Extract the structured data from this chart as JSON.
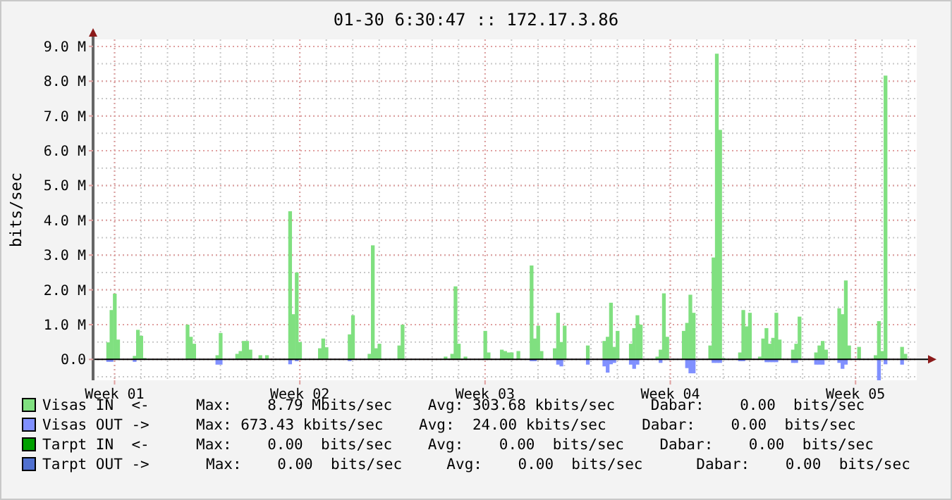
{
  "chart_data": {
    "type": "bar",
    "stacked": true,
    "title": "01-30 6:30:47 :: 172.17.3.86",
    "ylabel": "bits/sec",
    "categories": [
      null,
      null,
      null,
      null,
      null,
      null,
      "Week 01",
      null,
      null,
      null,
      null,
      null,
      null,
      null,
      null,
      null,
      null,
      null,
      null,
      null,
      null,
      null,
      null,
      null,
      null,
      null,
      null,
      null,
      null,
      null,
      null,
      null,
      null,
      null,
      null,
      null,
      null,
      null,
      null,
      null,
      null,
      null,
      null,
      null,
      null,
      null,
      null,
      null,
      null,
      null,
      null,
      null,
      null,
      null,
      null,
      null,
      null,
      null,
      null,
      null,
      null,
      null,
      "Week 02",
      null,
      null,
      null,
      null,
      null,
      null,
      null,
      null,
      null,
      null,
      null,
      null,
      null,
      null,
      null,
      null,
      null,
      null,
      null,
      null,
      null,
      null,
      null,
      null,
      null,
      null,
      null,
      null,
      null,
      null,
      null,
      null,
      null,
      null,
      null,
      null,
      null,
      null,
      null,
      null,
      null,
      null,
      null,
      null,
      null,
      null,
      null,
      null,
      null,
      null,
      null,
      null,
      null,
      null,
      null,
      "Week 03",
      null,
      null,
      null,
      null,
      null,
      null,
      null,
      null,
      null,
      null,
      null,
      null,
      null,
      null,
      null,
      null,
      null,
      null,
      null,
      null,
      null,
      null,
      null,
      null,
      null,
      null,
      null,
      null,
      null,
      null,
      null,
      null,
      null,
      null,
      null,
      null,
      null,
      null,
      null,
      null,
      null,
      null,
      null,
      null,
      null,
      null,
      null,
      null,
      null,
      null,
      null,
      null,
      null,
      null,
      null,
      "Week 04",
      null,
      null,
      null,
      null,
      null,
      null,
      null,
      null,
      null,
      null,
      null,
      null,
      null,
      null,
      null,
      null,
      null,
      null,
      null,
      null,
      null,
      null,
      null,
      null,
      null,
      null,
      null,
      null,
      null,
      null,
      null,
      null,
      null,
      null,
      null,
      null,
      null,
      null,
      null,
      null,
      null,
      null,
      null,
      null,
      null,
      null,
      null,
      null,
      null,
      null,
      null,
      null,
      null,
      null,
      null,
      "Week 05",
      null,
      null,
      null,
      null,
      null,
      null,
      null,
      null,
      null,
      null,
      null,
      null,
      null,
      null,
      null,
      null,
      null,
      null
    ],
    "ylim": [
      -0.6,
      9.2
    ],
    "yticks": [
      {
        "value": 0,
        "label": "0.0"
      },
      {
        "value": 1,
        "label": "1.0 M"
      },
      {
        "value": 2,
        "label": "2.0 M"
      },
      {
        "value": 3,
        "label": "3.0 M"
      },
      {
        "value": 4,
        "label": "4.0 M"
      },
      {
        "value": 5,
        "label": "5.0 M"
      },
      {
        "value": 6,
        "label": "6.0 M"
      },
      {
        "value": 7,
        "label": "7.0 M"
      },
      {
        "value": 8,
        "label": "8.0 M"
      },
      {
        "value": 9,
        "label": "9.0 M"
      }
    ],
    "grid": true,
    "legend": "bottom",
    "series": [
      {
        "name": "Visas IN  <-",
        "color": "#80e080",
        "values": [
          0,
          0,
          0,
          0,
          0.49,
          1.42,
          1.89,
          0.57,
          0,
          0,
          0,
          0,
          0.1,
          0.85,
          0.68,
          0.04,
          0,
          0,
          0,
          0,
          0,
          0,
          0,
          0,
          0,
          0,
          0,
          0,
          1.0,
          0.65,
          0.45,
          0,
          0,
          0,
          0,
          0,
          0,
          0.12,
          0.76,
          0,
          0,
          0,
          0,
          0.16,
          0.24,
          0.53,
          0.53,
          0.28,
          0,
          0,
          0.12,
          0,
          0.12,
          0,
          0,
          0,
          0,
          0,
          0,
          4.26,
          1.3,
          2.5,
          0.5,
          0,
          0,
          0,
          0,
          0,
          0.32,
          0.6,
          0.35,
          0,
          0,
          0,
          0,
          0,
          0,
          0.72,
          1.27,
          0,
          0,
          0,
          0,
          0.16,
          3.28,
          0.32,
          0.45,
          0,
          0,
          0,
          0,
          0,
          0.4,
          1.0,
          0,
          0,
          0,
          0,
          0,
          0,
          0,
          0,
          0,
          0,
          0,
          0,
          0.08,
          0,
          0.16,
          2.1,
          0.45,
          0,
          0.08,
          0,
          0,
          0,
          0,
          0,
          0.82,
          0.2,
          0,
          0,
          0,
          0.28,
          0.24,
          0.2,
          0.2,
          0,
          0.24,
          0,
          0,
          0,
          2.7,
          0.6,
          0.97,
          0.24,
          0,
          0,
          0,
          0.32,
          1.34,
          0.5,
          0.97,
          0,
          0,
          0,
          0,
          0,
          0,
          0.4,
          0,
          0,
          0,
          0,
          0.53,
          0.65,
          1.63,
          0.36,
          0.82,
          0,
          0,
          0,
          0.45,
          0.9,
          1.27,
          1.0,
          0,
          0,
          0,
          0,
          0.08,
          0.28,
          1.9,
          0.65,
          0,
          0,
          0,
          0,
          0.82,
          1.05,
          1.86,
          1.34,
          0,
          0,
          0,
          0,
          0.4,
          2.93,
          8.79,
          6.6,
          0.04,
          0,
          0,
          0,
          0,
          0.2,
          1.42,
          0.95,
          1.34,
          0,
          0,
          0.08,
          0.6,
          0.9,
          0.45,
          0.62,
          1.34,
          0.57,
          0,
          0,
          0,
          0.28,
          0.45,
          1.23,
          0,
          0,
          0,
          0,
          0.2,
          0.4,
          0.53,
          0.28,
          0,
          0,
          0,
          1.47,
          1.3,
          2.27,
          0.4,
          null,
          0,
          0.36,
          0,
          0,
          0,
          0,
          0.12,
          1.1,
          0.24,
          8.16,
          0,
          0,
          0,
          0,
          0.36,
          0.16,
          0,
          0,
          0
        ]
      },
      {
        "name": "Visas OUT ->",
        "color": "#8090ff",
        "values": [
          0,
          0,
          0,
          0,
          -0.07,
          -0.07,
          0,
          0,
          0,
          0,
          0,
          0,
          -0.07,
          0,
          0,
          0,
          0,
          0,
          0,
          0,
          0,
          0,
          0,
          0,
          0,
          0,
          0,
          0,
          0,
          0,
          0,
          0,
          0,
          0,
          0,
          0,
          0,
          -0.15,
          -0.15,
          0,
          0,
          0,
          0,
          0,
          0,
          0,
          0,
          0,
          0,
          0,
          0,
          0,
          0,
          0,
          0,
          0,
          0,
          0,
          0,
          -0.14,
          0,
          -0.05,
          0,
          0,
          0,
          0,
          0,
          0,
          0,
          0,
          0,
          0,
          0,
          0,
          0,
          0,
          0,
          -0.05,
          0,
          0,
          0,
          0,
          0,
          0,
          null,
          0,
          0,
          0,
          0,
          0,
          0,
          0,
          0,
          0,
          0,
          0,
          0,
          0,
          0,
          0,
          0,
          0,
          0,
          0,
          0,
          0,
          0,
          0,
          0,
          0,
          0,
          0,
          0,
          0,
          0,
          0,
          0,
          0,
          0,
          0,
          0,
          0,
          0,
          0,
          0,
          0,
          0,
          0,
          0,
          0,
          0,
          0,
          -0.05,
          -0.05,
          0,
          0,
          0,
          0,
          0,
          0,
          -0.15,
          -0.2,
          0,
          0,
          0,
          0,
          0,
          0,
          0,
          -0.15,
          0,
          0,
          0,
          0,
          -0.2,
          -0.38,
          -0.14,
          -0.1,
          0,
          0,
          0,
          0,
          -0.15,
          -0.27,
          -0.15,
          0,
          0,
          0,
          0,
          0,
          0,
          -0.1,
          0,
          0,
          0,
          0,
          0,
          0,
          0,
          -0.25,
          -0.4,
          -0.4,
          0,
          0,
          0,
          0,
          0,
          -0.1,
          -0.1,
          -0.1,
          0,
          0,
          0,
          0,
          0,
          -0.05,
          -0.05,
          0,
          0,
          0,
          0,
          0,
          0,
          -0.08,
          -0.08,
          -0.08,
          -0.08,
          0,
          0,
          0,
          0,
          -0.1,
          -0.1,
          0,
          0,
          0,
          0,
          0,
          -0.15,
          -0.15,
          -0.15,
          0,
          0,
          0,
          0,
          -0.1,
          -0.27,
          -0.15,
          0,
          0,
          0,
          0,
          0,
          0,
          0,
          0,
          0,
          -0.6,
          0,
          -0.14,
          0,
          0,
          0,
          0,
          -0.15,
          0,
          0,
          0,
          0
        ]
      },
      {
        "name": "Tarpt IN  <-",
        "color": "#00a000",
        "values": [
          0,
          0,
          0,
          0,
          0,
          0,
          0,
          0,
          0,
          0,
          0,
          0,
          0,
          0,
          0,
          0,
          0,
          0,
          0,
          0,
          0,
          0,
          0,
          0,
          0,
          0,
          0,
          0,
          0,
          0,
          0,
          0,
          0,
          0,
          0,
          0,
          0,
          0,
          0,
          0,
          0,
          0,
          0,
          0,
          0,
          0,
          0,
          0,
          0,
          0,
          0,
          0,
          0,
          0,
          0,
          0,
          0,
          0,
          0,
          0,
          0,
          0,
          0,
          0,
          0,
          0,
          0,
          0,
          0,
          0,
          0,
          0,
          0,
          0,
          0,
          0,
          0,
          0,
          0,
          0,
          0,
          0,
          0,
          0,
          0,
          0,
          0,
          0,
          0,
          0,
          0,
          0,
          0,
          0,
          0,
          0,
          0,
          0,
          0,
          0,
          0,
          0,
          0,
          0,
          0,
          0,
          0,
          0,
          0,
          0,
          0,
          0,
          0,
          0,
          0,
          0,
          0,
          0,
          0,
          0,
          0,
          0,
          0,
          0,
          0,
          0,
          0,
          0,
          0,
          0,
          0,
          0,
          0,
          0,
          0,
          0,
          0,
          0,
          0,
          0,
          0,
          0,
          0,
          0,
          0,
          0,
          0,
          0,
          0,
          0,
          0,
          0,
          0,
          0,
          0,
          0,
          0,
          0,
          0,
          0,
          0,
          0,
          0,
          0,
          0,
          0,
          0,
          0,
          0,
          0,
          0,
          0,
          0,
          0,
          0,
          0,
          0,
          0,
          0,
          0,
          0,
          0,
          0,
          0,
          0,
          0,
          0,
          0,
          0,
          0,
          0,
          0,
          0,
          0,
          0,
          0,
          0,
          0,
          0,
          0,
          0,
          0,
          0,
          0,
          0,
          0,
          0,
          0,
          0,
          0,
          0,
          0,
          0,
          0,
          0,
          0,
          0,
          0,
          0,
          0,
          0,
          0,
          0,
          0,
          0,
          0,
          0,
          0,
          0,
          0,
          0,
          0,
          0,
          0,
          0,
          0,
          0,
          0,
          0,
          0,
          0,
          0,
          0,
          0,
          0,
          0,
          0,
          0,
          0
        ]
      },
      {
        "name": "Tarpt OUT ->",
        "color": "#5070d0",
        "values": [
          0,
          0,
          0,
          0,
          0,
          0,
          0,
          0,
          0,
          0,
          0,
          0,
          0,
          0,
          0,
          0,
          0,
          0,
          0,
          0,
          0,
          0,
          0,
          0,
          0,
          0,
          0,
          0,
          0,
          0,
          0,
          0,
          0,
          0,
          0,
          0,
          0,
          0,
          0,
          0,
          0,
          0,
          0,
          0,
          0,
          0,
          0,
          0,
          0,
          0,
          0,
          0,
          0,
          0,
          0,
          0,
          0,
          0,
          0,
          0,
          0,
          0,
          0,
          0,
          0,
          0,
          0,
          0,
          0,
          0,
          0,
          0,
          0,
          0,
          0,
          0,
          0,
          0,
          0,
          0,
          0,
          0,
          0,
          0,
          0,
          0,
          0,
          0,
          0,
          0,
          0,
          0,
          0,
          0,
          0,
          0,
          0,
          0,
          0,
          0,
          0,
          0,
          0,
          0,
          0,
          0,
          0,
          0,
          0,
          0,
          0,
          0,
          0,
          0,
          0,
          0,
          0,
          0,
          0,
          0,
          0,
          0,
          0,
          0,
          0,
          0,
          0,
          0,
          0,
          0,
          0,
          0,
          0,
          0,
          0,
          0,
          0,
          0,
          0,
          0,
          0,
          0,
          0,
          0,
          0,
          0,
          0,
          0,
          0,
          0,
          0,
          0,
          0,
          0,
          0,
          0,
          0,
          0,
          0,
          0,
          0,
          0,
          0,
          0,
          0,
          0,
          0,
          0,
          0,
          0,
          0,
          0,
          0,
          0,
          0,
          0,
          0,
          0,
          0,
          0,
          0,
          0,
          0,
          0,
          0,
          0,
          0,
          0,
          0,
          0,
          0,
          0,
          0,
          0,
          0,
          0,
          0,
          0,
          0,
          0,
          0,
          0,
          0,
          0,
          0,
          0,
          0,
          0,
          0,
          0,
          0,
          0,
          0,
          0,
          0,
          0,
          0,
          0,
          0,
          0,
          0,
          0,
          0,
          0,
          0,
          0,
          0,
          0,
          0,
          0,
          0,
          0,
          0,
          0,
          0,
          0,
          0,
          0,
          0,
          0,
          0,
          0,
          0,
          0,
          0,
          0,
          0,
          0,
          0
        ]
      }
    ],
    "annotations": [
      "Max:    8.79 Mbits/sec    Avg: 303.68 kbits/sec    Dabar:    0.00  bits/sec",
      "Max: 673.43 kbits/sec    Avg:  24.00 kbits/sec    Dabar:    0.00  bits/sec",
      "Max:    0.00  bits/sec    Avg:    0.00  bits/sec    Dabar:    0.00  bits/sec",
      "Max:    0.00  bits/sec     Avg:    0.00  bits/sec      Dabar:    0.00  bits/sec"
    ]
  }
}
